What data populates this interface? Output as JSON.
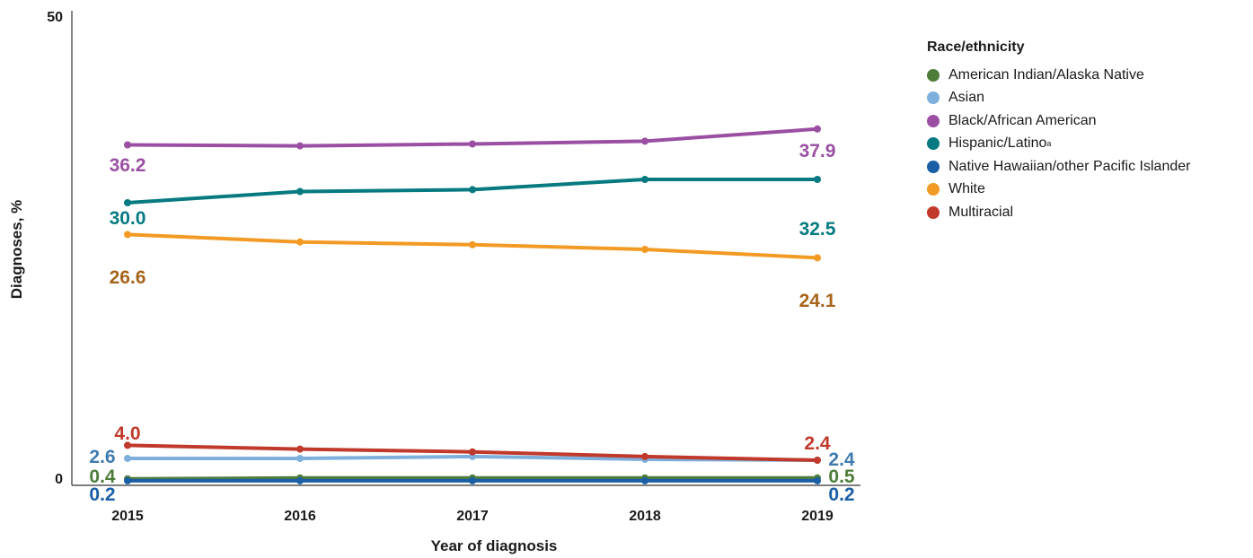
{
  "chart_data": {
    "type": "line",
    "categories": [
      "2015",
      "2016",
      "2017",
      "2018",
      "2019"
    ],
    "xlabel": "Year of diagnosis",
    "ylabel": "Diagnoses, %",
    "ylim": [
      0,
      50
    ],
    "yticks": [
      "0",
      "50"
    ],
    "grid": false,
    "legend": {
      "title": "Race/ethnicity",
      "placement": "right"
    },
    "series": [
      {
        "name": "American Indian/Alaska Native",
        "color": "#4e7d3a",
        "values": [
          0.4,
          0.5,
          0.5,
          0.5,
          0.5
        ],
        "labels": [
          "0.4",
          null,
          null,
          null,
          "0.5"
        ],
        "label_color": "#4e7d3a"
      },
      {
        "name": "Asian",
        "color": "#7fb0dd",
        "values": [
          2.6,
          2.6,
          2.8,
          2.5,
          2.4
        ],
        "labels": [
          "2.6",
          null,
          null,
          null,
          "2.4"
        ],
        "label_color": "#3f7bb0"
      },
      {
        "name": "Black/African American",
        "color": "#9b4fa3",
        "values": [
          36.2,
          36.1,
          36.3,
          36.6,
          37.9
        ],
        "labels": [
          "36.2",
          null,
          null,
          null,
          "37.9"
        ],
        "label_color": "#9b4fa3"
      },
      {
        "name": "Hispanic/Latino",
        "name_superscript": "a",
        "color": "#067a80",
        "values": [
          30.0,
          31.2,
          31.4,
          32.5,
          32.5
        ],
        "labels": [
          "30.0",
          null,
          null,
          null,
          "32.5"
        ],
        "label_color": "#067a80"
      },
      {
        "name": "Native Hawaiian/other Pacific Islander",
        "color": "#1a5fa6",
        "values": [
          0.2,
          0.2,
          0.2,
          0.2,
          0.2
        ],
        "labels": [
          "0.2",
          null,
          null,
          null,
          "0.2"
        ],
        "label_color": "#1a5fa6"
      },
      {
        "name": "White",
        "color": "#f29a24",
        "values": [
          26.6,
          25.8,
          25.5,
          25.0,
          24.1
        ],
        "labels": [
          "26.6",
          null,
          null,
          null,
          "24.1"
        ],
        "label_color": "#a7641b"
      },
      {
        "name": "Multiracial",
        "color": "#c0392b",
        "values": [
          4.0,
          3.6,
          3.3,
          2.8,
          2.4
        ],
        "labels": [
          "4.0",
          null,
          null,
          null,
          "2.4"
        ],
        "label_color": "#c0392b"
      }
    ]
  }
}
